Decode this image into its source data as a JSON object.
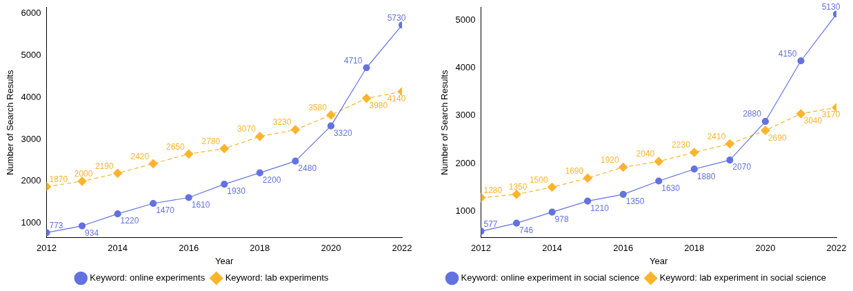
{
  "chart_data": [
    {
      "type": "line",
      "xlabel": "Year",
      "ylabel": "Number of Search Results",
      "x": [
        2012,
        2013,
        2014,
        2015,
        2016,
        2017,
        2018,
        2019,
        2020,
        2021,
        2022
      ],
      "xlim": [
        2012,
        2022
      ],
      "xticks": [
        2012,
        2014,
        2016,
        2018,
        2020,
        2022
      ],
      "ylim": [
        650,
        6150
      ],
      "yticks": [
        1000,
        2000,
        3000,
        4000,
        5000,
        6000
      ],
      "grid": false,
      "legend": "bottom",
      "data_labels": true,
      "series": [
        {
          "name": "Keyword: online experiments",
          "color": "#6272e0",
          "marker": "circle",
          "line_style": "solid",
          "values": [
            773,
            934,
            1220,
            1470,
            1610,
            1930,
            2200,
            2480,
            3320,
            4710,
            5730
          ]
        },
        {
          "name": "Keyword: lab experiments",
          "color": "#fbb42c",
          "marker": "diamond",
          "line_style": "dashed",
          "values": [
            1870,
            2000,
            2190,
            2420,
            2650,
            2780,
            3070,
            3230,
            3580,
            3980,
            4140
          ]
        }
      ]
    },
    {
      "type": "line",
      "xlabel": "Year",
      "ylabel": "Number of Search Results",
      "x": [
        2012,
        2013,
        2014,
        2015,
        2016,
        2017,
        2018,
        2019,
        2020,
        2021,
        2022
      ],
      "xlim": [
        2012,
        2022
      ],
      "xticks": [
        2012,
        2014,
        2016,
        2018,
        2020,
        2022
      ],
      "ylim": [
        440,
        5270
      ],
      "yticks": [
        1000,
        2000,
        3000,
        4000,
        5000
      ],
      "grid": false,
      "legend": "bottom",
      "data_labels": true,
      "series": [
        {
          "name": "Keyword: online experiment in social science",
          "color": "#6272e0",
          "marker": "circle",
          "line_style": "solid",
          "values": [
            577,
            746,
            978,
            1210,
            1350,
            1630,
            1880,
            2070,
            2880,
            4150,
            5130
          ]
        },
        {
          "name": "Keyword: lab experiment in social science",
          "color": "#fbb42c",
          "marker": "diamond",
          "line_style": "dashed",
          "values": [
            1280,
            1350,
            1500,
            1690,
            1920,
            2040,
            2230,
            2410,
            2690,
            3040,
            3170
          ]
        }
      ]
    }
  ]
}
